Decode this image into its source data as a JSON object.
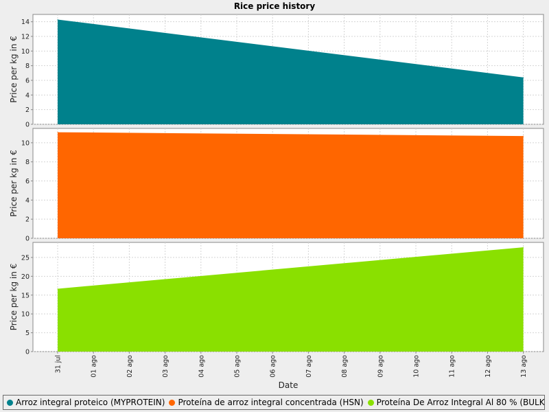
{
  "chart_data": {
    "type": "area",
    "title": "Rice price history",
    "xlabel": "Date",
    "ylabel": "Price per kg in €",
    "x_ticks": [
      "31 jul",
      "01 ago",
      "02 ago",
      "03 ago",
      "04 ago",
      "05 ago",
      "06 ago",
      "07 ago",
      "08 ago",
      "09 ago",
      "10 ago",
      "11 ago",
      "12 ago",
      "13 ago"
    ],
    "grid": true,
    "legend_position": "bottom",
    "series": [
      {
        "name": "Arroz integral proteico (MYPROTEIN)",
        "color": "#00818c",
        "x": [
          "31 jul",
          "13 ago"
        ],
        "values": [
          14.3,
          6.4
        ],
        "ylim": [
          0,
          15
        ],
        "y_ticks": [
          0,
          2,
          4,
          6,
          8,
          10,
          12,
          14
        ]
      },
      {
        "name": "Proteína de arroz integral concentrada (HSN)",
        "color": "#ff6600",
        "x": [
          "31 jul",
          "13 ago"
        ],
        "values": [
          11.1,
          10.7
        ],
        "ylim": [
          0,
          11.5
        ],
        "y_ticks": [
          0,
          2,
          4,
          6,
          8,
          10
        ]
      },
      {
        "name": "Proteína De Arroz Integral Al 80 % (BULKPOWDERS)",
        "color": "#8ae000",
        "x": [
          "31 jul",
          "13 ago"
        ],
        "values": [
          16.7,
          27.7
        ],
        "ylim": [
          0,
          29
        ],
        "y_ticks": [
          0,
          5,
          10,
          15,
          20,
          25
        ]
      }
    ]
  }
}
